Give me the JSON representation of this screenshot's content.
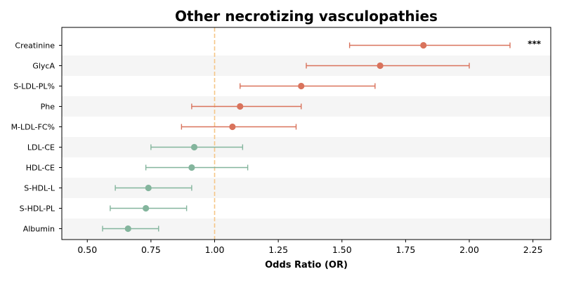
{
  "chart_data": {
    "type": "forest",
    "title": "Other necrotizing vasculopathies",
    "xlabel": "Odds Ratio (OR)",
    "ylabel": "",
    "xlim": [
      0.4,
      2.32
    ],
    "xticks": [
      "0.50",
      "0.75",
      "1.00",
      "1.25",
      "1.50",
      "1.75",
      "2.00",
      "2.25"
    ],
    "reference_line": 1.0,
    "reference_color": "#f5c687",
    "colors": {
      "positive": "#d9735c",
      "negative": "#84b59d",
      "band": "#f5f5f5"
    },
    "grid": false,
    "rows": [
      {
        "label": "Creatinine",
        "or": 1.82,
        "lo": 1.53,
        "hi": 2.16,
        "group": "positive",
        "annotation": "***"
      },
      {
        "label": "GlycA",
        "or": 1.65,
        "lo": 1.36,
        "hi": 2.0,
        "group": "positive",
        "annotation": ""
      },
      {
        "label": "S-LDL-PL%",
        "or": 1.34,
        "lo": 1.1,
        "hi": 1.63,
        "group": "positive",
        "annotation": ""
      },
      {
        "label": "Phe",
        "or": 1.1,
        "lo": 0.91,
        "hi": 1.34,
        "group": "positive",
        "annotation": ""
      },
      {
        "label": "M-LDL-FC%",
        "or": 1.07,
        "lo": 0.87,
        "hi": 1.32,
        "group": "positive",
        "annotation": ""
      },
      {
        "label": "LDL-CE",
        "or": 0.92,
        "lo": 0.75,
        "hi": 1.11,
        "group": "negative",
        "annotation": ""
      },
      {
        "label": "HDL-CE",
        "or": 0.91,
        "lo": 0.73,
        "hi": 1.13,
        "group": "negative",
        "annotation": ""
      },
      {
        "label": "S-HDL-L",
        "or": 0.74,
        "lo": 0.61,
        "hi": 0.91,
        "group": "negative",
        "annotation": ""
      },
      {
        "label": "S-HDL-PL",
        "or": 0.73,
        "lo": 0.59,
        "hi": 0.89,
        "group": "negative",
        "annotation": ""
      },
      {
        "label": "Albumin",
        "or": 0.66,
        "lo": 0.56,
        "hi": 0.78,
        "group": "negative",
        "annotation": ""
      }
    ]
  }
}
